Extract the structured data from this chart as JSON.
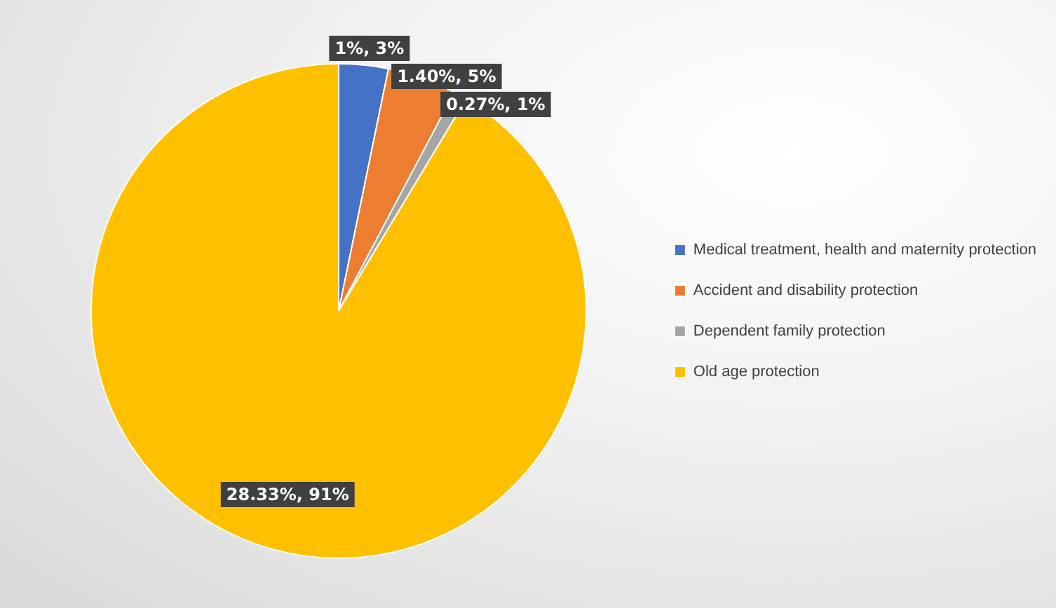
{
  "chart_data": {
    "type": "pie",
    "categories": [
      "Medical treatment, health and maternity protection",
      "Accident and disability protection",
      "Dependent family protection",
      "Old age protection"
    ],
    "values": [
      1,
      1.4,
      0.27,
      28.33
    ],
    "colors": [
      "#4472c4",
      "#ed7d31",
      "#a5a5a5",
      "#ffc000"
    ],
    "value_labels": [
      "1%, 3%",
      "1.40%, 5%",
      "0.27%, 1%",
      "28.33%, 91%"
    ],
    "legend": "right"
  }
}
